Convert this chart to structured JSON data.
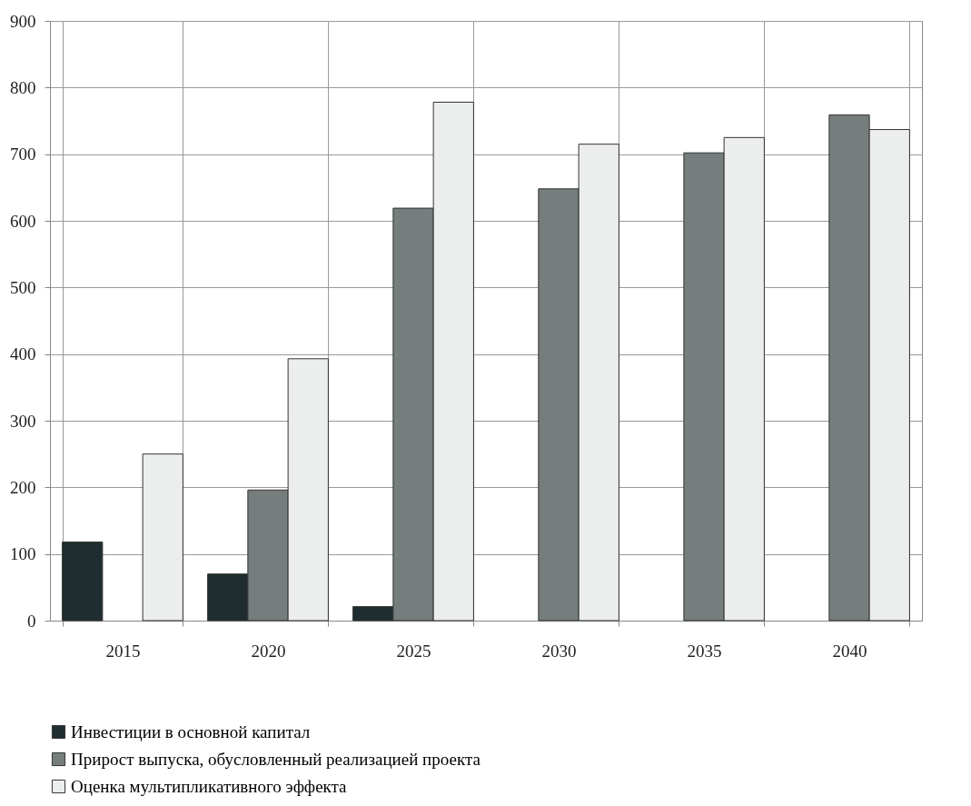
{
  "chart_data": {
    "type": "bar",
    "categories": [
      "2015",
      "2020",
      "2025",
      "2030",
      "2035",
      "2040"
    ],
    "series": [
      {
        "name": "Инвестиции в основной капитал",
        "color": "#1f2d30",
        "values": [
          118,
          70,
          21,
          null,
          null,
          null
        ]
      },
      {
        "name": "Прирост выпуска, обусловленный реализацией проекта",
        "color": "#757d7d",
        "values": [
          null,
          196,
          619,
          648,
          702,
          759
        ]
      },
      {
        "name": "Оценка мультипликативного эффекта",
        "color": "#eceeed",
        "values": [
          250,
          393,
          778,
          715,
          725,
          737
        ]
      }
    ],
    "ylim": [
      0,
      900
    ],
    "yticks": [
      0,
      100,
      200,
      300,
      400,
      500,
      600,
      700,
      800,
      900
    ],
    "grid": true,
    "legend": "bottom"
  }
}
